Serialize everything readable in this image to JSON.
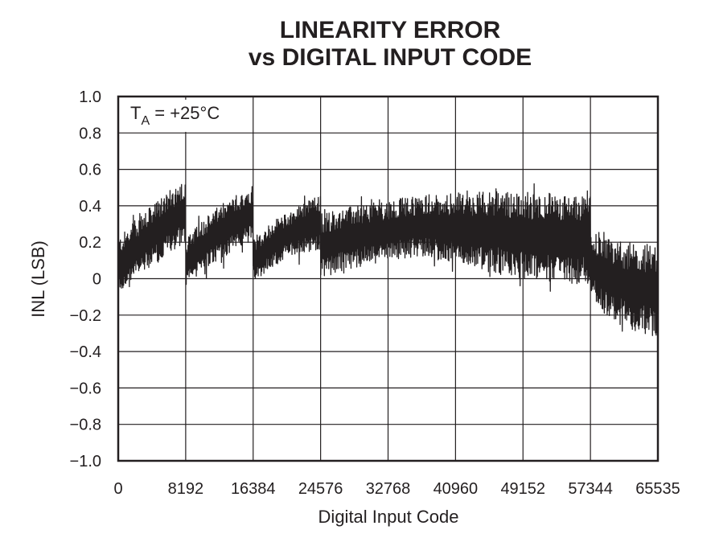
{
  "chart_data": {
    "type": "line",
    "title_line1": "LINEARITY ERROR",
    "title_line2": "vs DIGITAL INPUT CODE",
    "xlabel": "Digital Input Code",
    "ylabel": "INL (LSB)",
    "annotation": {
      "symbol": "T",
      "subscript": "A",
      "text": " = +25°C"
    },
    "xlim": [
      0,
      65535
    ],
    "ylim": [
      -1.0,
      1.0
    ],
    "x_ticks": [
      0,
      8192,
      16384,
      24576,
      32768,
      40960,
      49152,
      57344,
      65535
    ],
    "x_tick_labels": [
      "0",
      "8192",
      "16384",
      "24576",
      "32768",
      "40960",
      "49152",
      "57344",
      "65535"
    ],
    "y_ticks": [
      1.0,
      0.8,
      0.6,
      0.4,
      0.2,
      0,
      -0.2,
      -0.4,
      -0.6,
      -0.8,
      -1.0
    ],
    "y_tick_labels": [
      "1.0",
      "0.8",
      "0.6",
      "0.4",
      "0.2",
      "0",
      "−0.2",
      "−0.4",
      "−0.6",
      "−0.8",
      "−1.0"
    ],
    "grid": true,
    "line_color": "#231f20",
    "series": [
      {
        "envelope": {
          "x": [
            0,
            2048,
            4096,
            6144,
            8191,
            8192,
            10240,
            12288,
            14336,
            16383,
            16384,
            18432,
            20480,
            22528,
            24575,
            24576,
            28672,
            32768,
            36864,
            40960,
            45056,
            49152,
            53248,
            57343,
            57344,
            59392,
            61440,
            63488,
            65535
          ],
          "upper": [
            0.22,
            0.32,
            0.4,
            0.48,
            0.55,
            0.22,
            0.32,
            0.4,
            0.46,
            0.52,
            0.22,
            0.3,
            0.36,
            0.42,
            0.46,
            0.36,
            0.4,
            0.43,
            0.46,
            0.47,
            0.48,
            0.48,
            0.47,
            0.45,
            0.26,
            0.22,
            0.2,
            0.2,
            0.18
          ],
          "lower": [
            -0.08,
            0.0,
            0.06,
            0.14,
            0.2,
            -0.05,
            0.04,
            0.1,
            0.16,
            0.2,
            -0.03,
            0.05,
            0.12,
            0.14,
            0.16,
            0.0,
            0.06,
            0.1,
            0.12,
            0.08,
            0.04,
            0.0,
            -0.02,
            -0.04,
            -0.1,
            -0.2,
            -0.26,
            -0.3,
            -0.34
          ],
          "max": 0.61,
          "min": -0.36
        }
      }
    ]
  }
}
